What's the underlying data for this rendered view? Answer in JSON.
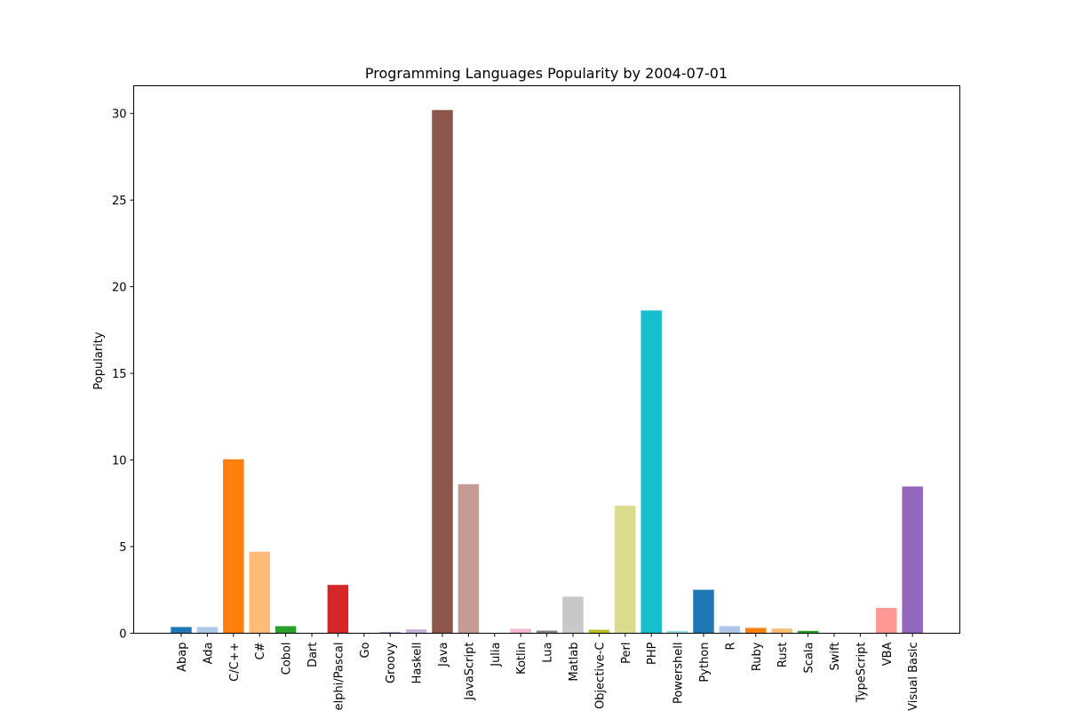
{
  "chart_data": {
    "type": "bar",
    "title": "Programming Languages Popularity by 2004-07-01",
    "xlabel": "",
    "ylabel": "Popularity",
    "ylim": [
      0,
      31.6
    ],
    "yticks": [
      0,
      5,
      10,
      15,
      20,
      25,
      30
    ],
    "grid": false,
    "categories": [
      "Abap",
      "Ada",
      "C/C++",
      "C#",
      "Cobol",
      "Dart",
      "Delphi/Pascal",
      "Go",
      "Groovy",
      "Haskell",
      "Java",
      "JavaScript",
      "Julia",
      "Kotlin",
      "Lua",
      "Matlab",
      "Objective-C",
      "Perl",
      "PHP",
      "Powershell",
      "Python",
      "R",
      "Ruby",
      "Rust",
      "Scala",
      "Swift",
      "TypeScript",
      "VBA",
      "Visual Basic"
    ],
    "values": [
      0.36,
      0.36,
      10.04,
      4.7,
      0.41,
      0.0,
      2.79,
      0.0,
      0.06,
      0.22,
      30.2,
      8.6,
      0.0,
      0.26,
      0.15,
      2.11,
      0.2,
      7.36,
      18.63,
      0.14,
      2.51,
      0.41,
      0.31,
      0.27,
      0.14,
      0.0,
      0.0,
      1.46,
      8.47
    ],
    "colors": [
      "#1f77b4",
      "#aec7e8",
      "#ff7f0e",
      "#ffbb78",
      "#2ca02c",
      "#98df8a",
      "#d62728",
      "#ff9896",
      "#9467bd",
      "#c5b0d5",
      "#8c564b",
      "#c49c94",
      "#e377c2",
      "#f7b6d2",
      "#7f7f7f",
      "#c7c7c7",
      "#bcbd22",
      "#dbdb8d",
      "#17becf",
      "#9edae5",
      "#1f77b4",
      "#aec7e8",
      "#ff7f0e",
      "#ffbb78",
      "#2ca02c",
      "#98df8a",
      "#d62728",
      "#ff9896",
      "#9467bd"
    ]
  }
}
